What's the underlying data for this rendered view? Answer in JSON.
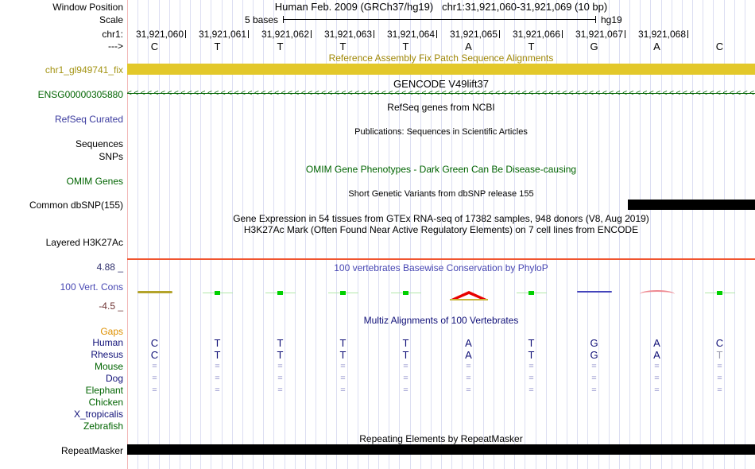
{
  "header": {
    "window_position_label": "Window Position",
    "assembly": "Human Feb. 2009 (GRCh37/hg19)",
    "position": "chr1:31,921,060-31,921,069 (10 bp)",
    "scale_label": "Scale",
    "scale_value": "5 bases",
    "scale_genome": "hg19",
    "chrom_label": "chr1:",
    "strand_label": "--->",
    "coordinates": [
      "31,921,060",
      "31,921,061",
      "31,921,062",
      "31,921,063",
      "31,921,064",
      "31,921,065",
      "31,921,066",
      "31,921,067",
      "31,921,068"
    ],
    "bases": [
      "C",
      "T",
      "T",
      "T",
      "T",
      "A",
      "T",
      "G",
      "A",
      "C"
    ]
  },
  "fix_patch": {
    "title": "Reference Assembly Fix Patch Sequence Alignments",
    "label": "chr1_gl949741_fix"
  },
  "gencode": {
    "title": "GENCODE V49lift37",
    "gene_label": "ENSG00000305880",
    "arrow_glyph": "<",
    "arrow_count": 94
  },
  "refseq": {
    "title": "RefSeq genes from NCBI",
    "label": "RefSeq Curated"
  },
  "publications": {
    "title": "Publications: Sequences in Scientific Articles",
    "label_sequences": "Sequences",
    "label_snps": "SNPs"
  },
  "omim": {
    "title": "OMIM Gene Phenotypes - Dark Green Can Be Disease-causing",
    "label": "OMIM Genes"
  },
  "dbsnp": {
    "title": "Short Genetic Variants from dbSNP release 155",
    "label": "Common dbSNP(155)"
  },
  "gtex_h3k27ac": {
    "title_line1": "Gene Expression in 54 tissues from GTEx RNA-seq of 17382 samples, 948 donors (V8, Aug 2019)",
    "title_line2": "H3K27Ac Mark (Often Found Near Active Regulatory Elements) on 7 cell lines from ENCODE",
    "label": "Layered H3K27Ac"
  },
  "conservation": {
    "title": "100 vertebrates Basewise Conservation by PhyloP",
    "label": "100 Vert. Cons",
    "max_label": "4.88 _",
    "min_label": "-4.5 _",
    "marks": [
      "olive-dash",
      "green-tick",
      "green-tick",
      "green-tick",
      "green-tick",
      "red-peak",
      "green-tick",
      "blue-dash",
      "pink-arc",
      "green-tick"
    ]
  },
  "multiz": {
    "title": "Multiz Alignments of 100 Vertebrates",
    "gaps_label": "Gaps",
    "species": [
      {
        "name": "Human",
        "color": "navy",
        "style": "letter",
        "cells": [
          "C",
          "T",
          "T",
          "T",
          "T",
          "A",
          "T",
          "G",
          "A",
          "C"
        ],
        "muted": []
      },
      {
        "name": "Rhesus",
        "color": "navy",
        "style": "letter",
        "cells": [
          "C",
          "T",
          "T",
          "T",
          "T",
          "A",
          "T",
          "G",
          "A",
          "T"
        ],
        "muted": [
          9
        ]
      },
      {
        "name": "Mouse",
        "color": "green",
        "style": "eq",
        "cells": [
          "=",
          "=",
          "=",
          "=",
          "=",
          "=",
          "=",
          "=",
          "=",
          "="
        ],
        "muted": []
      },
      {
        "name": "Dog",
        "color": "navy",
        "style": "eq",
        "cells": [
          "=",
          "=",
          "=",
          "=",
          "=",
          "=",
          "=",
          "=",
          "=",
          "="
        ],
        "muted": []
      },
      {
        "name": "Elephant",
        "color": "green",
        "style": "eq",
        "cells": [
          "=",
          "=",
          "=",
          "=",
          "=",
          "=",
          "=",
          "=",
          "=",
          "="
        ],
        "muted": []
      },
      {
        "name": "Chicken",
        "color": "green",
        "style": "letter",
        "cells": [
          "",
          "",
          "",
          "",
          "",
          "",
          "",
          "",
          "",
          ""
        ],
        "muted": []
      },
      {
        "name": "X_tropicalis",
        "color": "navy",
        "style": "letter",
        "cells": [
          "",
          "",
          "",
          "",
          "",
          "",
          "",
          "",
          "",
          ""
        ],
        "muted": []
      },
      {
        "name": "Zebrafish",
        "color": "green",
        "style": "letter",
        "cells": [
          "",
          "",
          "",
          "",
          "",
          "",
          "",
          "",
          "",
          ""
        ],
        "muted": []
      }
    ]
  },
  "repeatmasker": {
    "title": "Repeating Elements by RepeatMasker",
    "label": "RepeatMasker"
  },
  "colors": {
    "fix_patch_bar": "#e3c82a",
    "fix_patch_label": "#a39312",
    "gene_green": "#006400",
    "refseq_blue": "#3a3a9e",
    "conservation_blue": "#4747b3",
    "conservation_max": "#32326e",
    "conservation_min": "#6e3232",
    "baseline_orange": "#f0552f",
    "alignment_navy": "#101078",
    "eq_slate": "#8a8ac8",
    "muted_grey": "#9a9aae",
    "gaps_orange": "#de9000",
    "gridline": "#dcdef2",
    "pink_guide": "#f2b8b8",
    "bar_black": "#000000"
  }
}
